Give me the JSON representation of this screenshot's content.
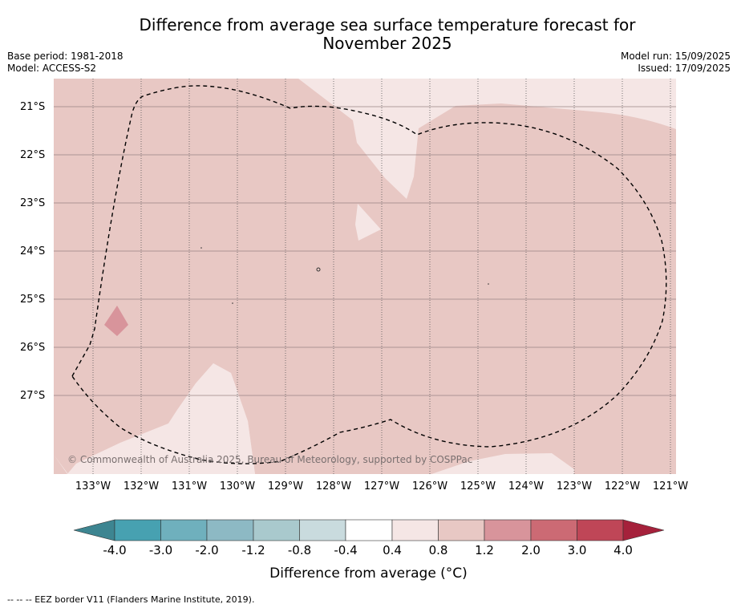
{
  "title": {
    "line1": "Difference from average sea surface temperature forecast for",
    "line2": "November 2025"
  },
  "meta_left": {
    "base_period": "Base period: 1981-2018",
    "model": "Model: ACCESS-S2"
  },
  "meta_right": {
    "model_run": "Model run: 15/09/2025",
    "issued": "Issued: 17/09/2025"
  },
  "map": {
    "latitude_labels": [
      "21°S",
      "22°S",
      "23°S",
      "24°S",
      "25°S",
      "26°S",
      "27°S"
    ],
    "longitude_labels": [
      "133°W",
      "132°W",
      "131°W",
      "130°W",
      "129°W",
      "128°W",
      "127°W",
      "126°W",
      "125°W",
      "124°W",
      "123°W",
      "122°W",
      "121°W"
    ],
    "copyright": "© Commonwealth of Australia 2025, Bureau of Meteorology, supported by COSPPac",
    "fill_colors": {
      "0.4_to_0.8": "#f5e6e5",
      "0.8_to_1.2": "#e8c8c4",
      "1.2_to_2.0": "#d8949b"
    }
  },
  "colorbar": {
    "tick_labels": [
      "-4.0",
      "-3.0",
      "-2.0",
      "-1.2",
      "-0.8",
      "-0.4",
      "0.4",
      "0.8",
      "1.2",
      "2.0",
      "3.0",
      "4.0"
    ],
    "colors": [
      "#3d8591",
      "#47a1b1",
      "#6fb0bd",
      "#8db9c4",
      "#a9c9cd",
      "#c9dbde",
      "#ffffff",
      "#f5e6e5",
      "#e8c8c4",
      "#d8949b",
      "#cc6a74",
      "#bf4657",
      "#a5213b"
    ],
    "label": "Difference from average (°C)"
  },
  "footnote": "-- -- -- EEZ border V11 (Flanders Marine Institute, 2019)."
}
